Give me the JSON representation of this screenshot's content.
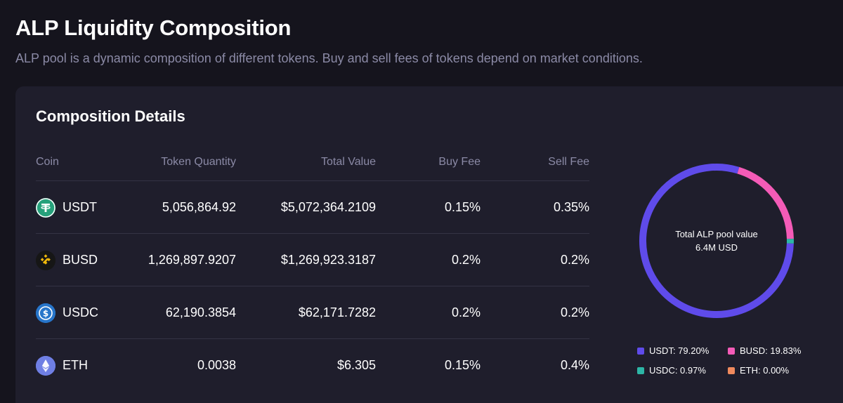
{
  "page": {
    "title": "ALP Liquidity Composition",
    "subtitle": "ALP pool is a dynamic composition of different tokens. Buy and sell fees of tokens depend on market conditions."
  },
  "card": {
    "title": "Composition Details",
    "columns": [
      "Coin",
      "Token Quantity",
      "Total Value",
      "Buy Fee",
      "Sell Fee"
    ],
    "rows": [
      {
        "coin": "USDT",
        "icon": "tether-icon",
        "quantity": "5,056,864.92",
        "value": "$5,072,364.2109",
        "buy_fee": "0.15%",
        "sell_fee": "0.35%"
      },
      {
        "coin": "BUSD",
        "icon": "binance-usd-icon",
        "quantity": "1,269,897.9207",
        "value": "$1,269,923.3187",
        "buy_fee": "0.2%",
        "sell_fee": "0.2%"
      },
      {
        "coin": "USDC",
        "icon": "usd-coin-icon",
        "quantity": "62,190.3854",
        "value": "$62,171.7282",
        "buy_fee": "0.2%",
        "sell_fee": "0.2%"
      },
      {
        "coin": "ETH",
        "icon": "ethereum-icon",
        "quantity": "0.0038",
        "value": "$6.305",
        "buy_fee": "0.15%",
        "sell_fee": "0.4%"
      }
    ]
  },
  "chart_data": {
    "type": "pie",
    "center_label": "Total ALP pool value",
    "center_value": "6.4M USD",
    "slices": [
      {
        "label": "USDT",
        "value": 79.2,
        "legend": "USDT: 79.20%",
        "color": "#5f4bea"
      },
      {
        "label": "BUSD",
        "value": 19.83,
        "legend": "BUSD: 19.83%",
        "color": "#f45bb7"
      },
      {
        "label": "USDC",
        "value": 0.97,
        "legend": "USDC: 0.97%",
        "color": "#2db6a6"
      },
      {
        "label": "ETH",
        "value": 0.0,
        "legend": "ETH: 0.00%",
        "color": "#f08a5d"
      }
    ],
    "legend_placement": "bottom"
  },
  "colors": {
    "background": "#15141d",
    "card": "#1f1e2c",
    "muted_text": "#8b8aa6",
    "divider": "#343344"
  }
}
